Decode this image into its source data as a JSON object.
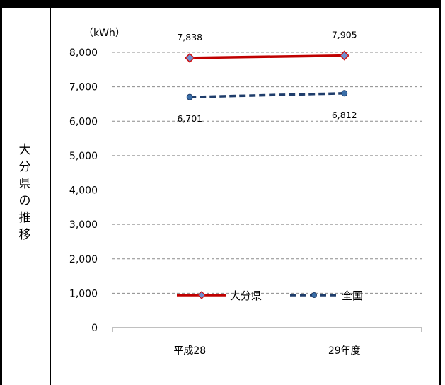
{
  "side_label": [
    "大",
    "分",
    "県",
    "の",
    "推",
    "移"
  ],
  "chart_data": {
    "type": "line",
    "unit_label": "（kWh）",
    "categories": [
      "平成28",
      "29年度"
    ],
    "ylim": [
      0,
      8000
    ],
    "yticks": [
      "0",
      "1,000",
      "2,000",
      "3,000",
      "4,000",
      "5,000",
      "6,000",
      "7,000",
      "8,000"
    ],
    "grid": true,
    "legend_position": "bottom-center",
    "series": [
      {
        "name": "大分県",
        "values": [
          7838,
          7905
        ],
        "labels": [
          "7,838",
          "7,905"
        ],
        "color": "#c00000",
        "marker_color": "#6f8fd0",
        "style": "solid"
      },
      {
        "name": "全国",
        "values": [
          6701,
          6812
        ],
        "labels": [
          "6,701",
          "6,812"
        ],
        "color": "#1f3d6b",
        "marker_color": "#3a6ea8",
        "style": "dashed"
      }
    ]
  }
}
